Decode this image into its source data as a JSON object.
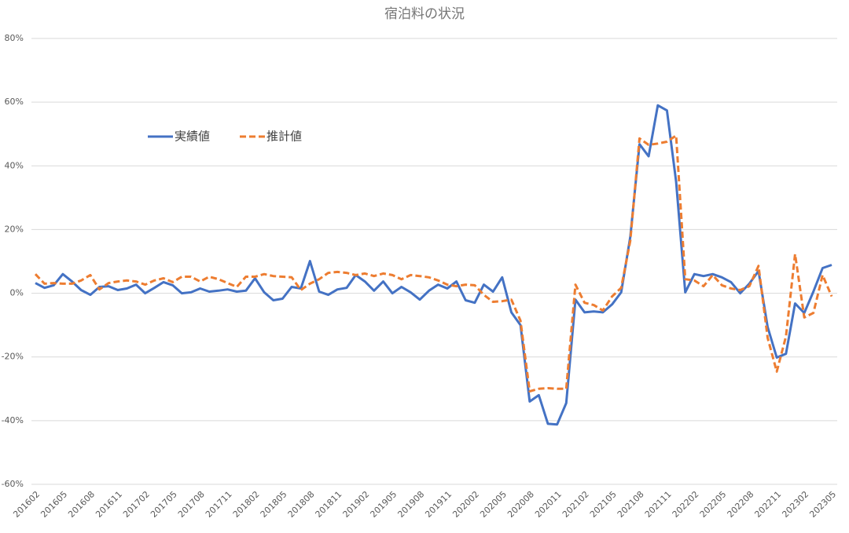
{
  "chart_data": {
    "type": "line",
    "title": "宿泊料の状況",
    "categories": [
      "201602",
      null,
      null,
      "201605",
      null,
      null,
      "201608",
      null,
      null,
      "201611",
      null,
      null,
      "201702",
      null,
      null,
      "201705",
      null,
      null,
      "201708",
      null,
      null,
      "201711",
      null,
      null,
      "201802",
      null,
      null,
      "201805",
      null,
      null,
      "201808",
      null,
      null,
      "201811",
      null,
      null,
      "201902",
      null,
      null,
      "201905",
      null,
      null,
      "201908",
      null,
      null,
      "201911",
      null,
      null,
      "202002",
      null,
      null,
      "202005",
      null,
      null,
      "202008",
      null,
      null,
      "202011",
      null,
      null,
      "202102",
      null,
      null,
      "202105",
      null,
      null,
      "202108",
      null,
      null,
      "202111",
      null,
      null,
      "202202",
      null,
      null,
      "202205",
      null,
      null,
      "202208",
      null,
      null,
      "202211",
      null,
      null,
      "202302",
      null,
      null,
      "202305"
    ],
    "series": [
      {
        "name": "実績値",
        "color": "#4472c4",
        "dashed": false,
        "values": [
          3.2,
          1.7,
          2.5,
          6,
          3.7,
          1,
          -0.5,
          2,
          2.2,
          1,
          1.5,
          2.7,
          0,
          1.7,
          3.5,
          2.5,
          0,
          0.3,
          1.5,
          0.5,
          0.8,
          1.2,
          0.5,
          0.8,
          4.7,
          0.3,
          -2.2,
          -1.7,
          2,
          1.5,
          10.1,
          0.5,
          -0.5,
          1.2,
          1.7,
          5.7,
          3.7,
          0.8,
          3.7,
          0,
          2,
          0.3,
          -2,
          0.8,
          2.7,
          1.5,
          3.7,
          -2.2,
          -3,
          2.7,
          0.5,
          5,
          -6,
          -10,
          -34,
          -32,
          -41,
          -41.2,
          -34.5,
          -2,
          -6,
          -5.7,
          -6,
          -3.5,
          0.3,
          17.7,
          46.8,
          43,
          59,
          57.4,
          35,
          0.3,
          6,
          5.4,
          6,
          5,
          3.5,
          0,
          3,
          7,
          -10.6,
          -20.2,
          -19,
          -3.2,
          -6.2,
          0.5,
          7.9,
          8.9
        ]
      },
      {
        "name": "推計値",
        "color": "#ed7d31",
        "dashed": true,
        "values": [
          6,
          3,
          3.2,
          3,
          3,
          4,
          5.7,
          1.2,
          3.2,
          3.7,
          4,
          3.7,
          2.7,
          4,
          4.7,
          3.5,
          5.2,
          5.2,
          3.7,
          5.2,
          4.4,
          3.2,
          2,
          5.2,
          5.2,
          6,
          5.4,
          5.2,
          5,
          1,
          3,
          4.4,
          6.4,
          6.7,
          6.4,
          5.7,
          6.2,
          5.4,
          6.2,
          5.7,
          4.4,
          5.7,
          5.4,
          5,
          4,
          2.7,
          2.2,
          2.7,
          2.5,
          -0.5,
          -2.7,
          -2.5,
          -2,
          -8.6,
          -30.8,
          -30,
          -29.8,
          -30,
          -30,
          2.7,
          -3,
          -3.7,
          -5.4,
          -1,
          1.7,
          16.5,
          48.6,
          46.6,
          47,
          47.6,
          49.5,
          4.4,
          4,
          2.2,
          5.7,
          2.5,
          1.5,
          1,
          2.2,
          8.6,
          -14,
          -24.6,
          -13.6,
          12.3,
          -7.6,
          -6.2,
          5.7,
          -1
        ]
      }
    ],
    "ylim": [
      -60,
      80
    ],
    "yticks": [
      {
        "value": -60,
        "label": "-60%"
      },
      {
        "value": -40,
        "label": "-40%"
      },
      {
        "value": -20,
        "label": "-20%"
      },
      {
        "value": 0,
        "label": "0%"
      },
      {
        "value": 20,
        "label": "20%"
      },
      {
        "value": 40,
        "label": "40%"
      },
      {
        "value": 60,
        "label": "60%"
      },
      {
        "value": 80,
        "label": "80%"
      }
    ],
    "grid": true,
    "legend": "upper left"
  }
}
